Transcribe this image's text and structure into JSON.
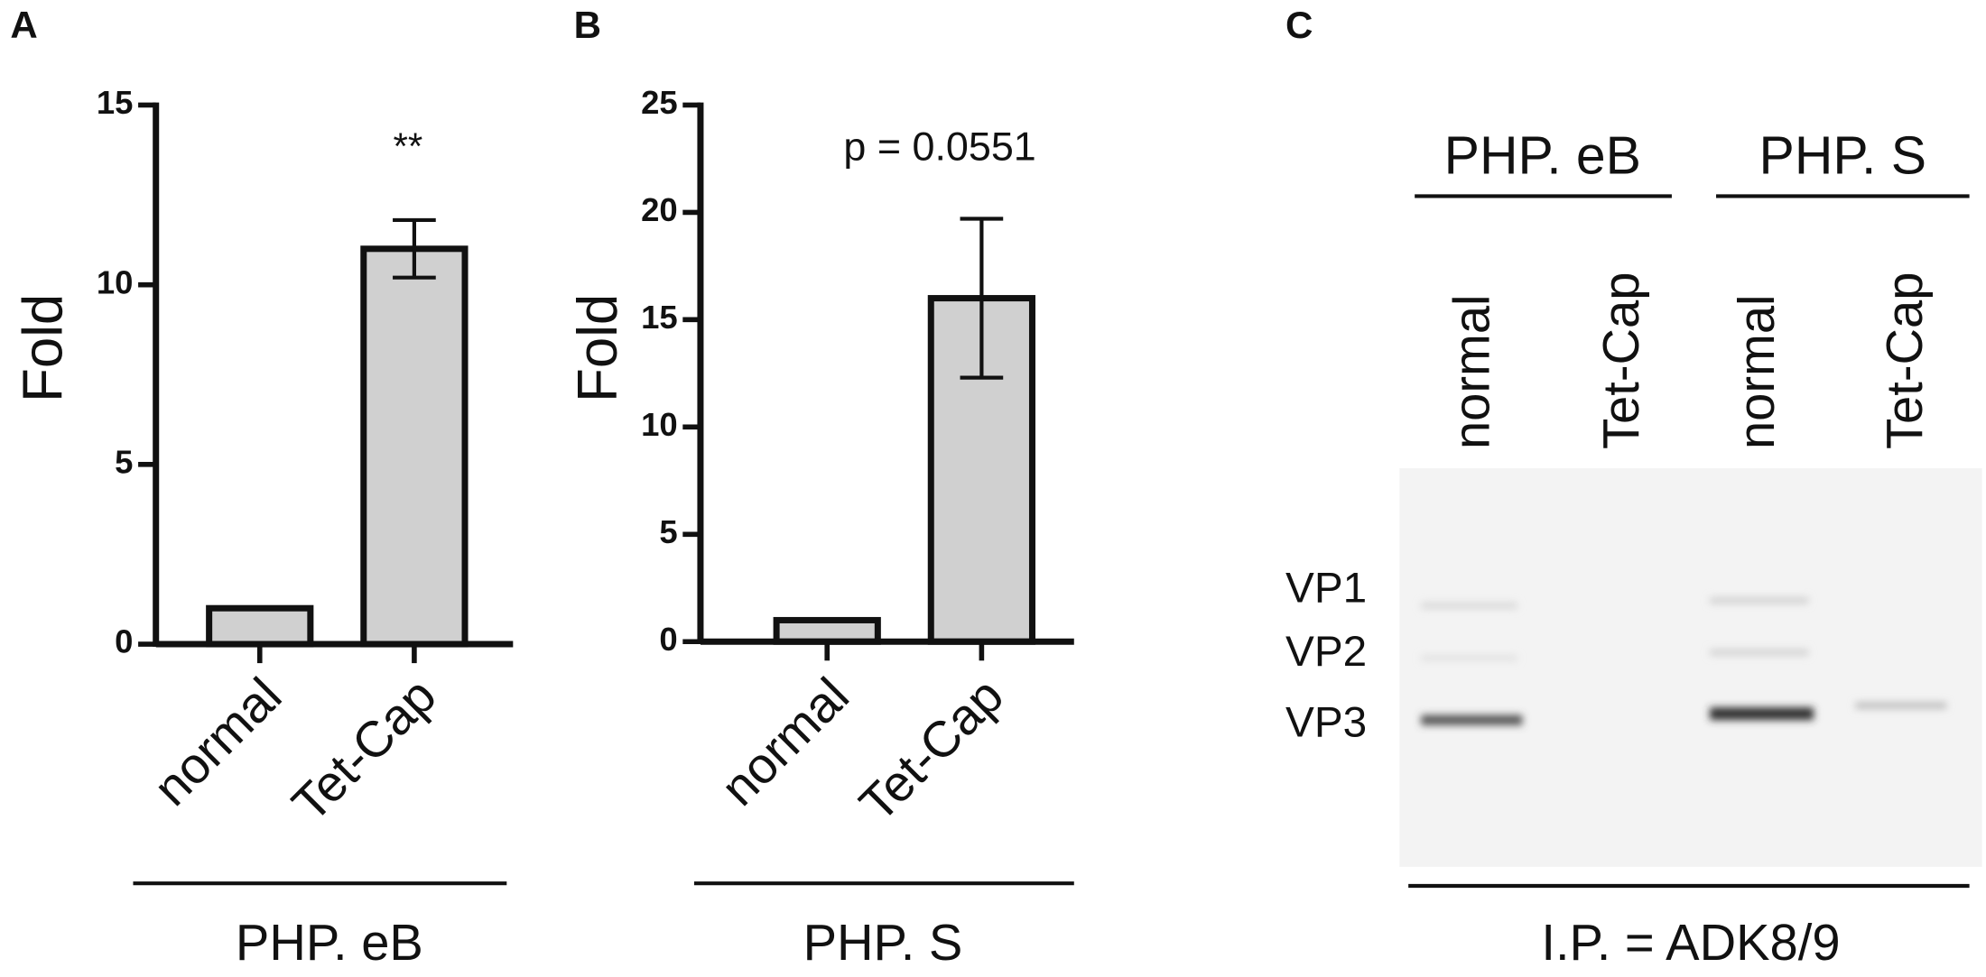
{
  "chart_data": [
    {
      "type": "bar",
      "panel": "A",
      "y_label": "Fold",
      "categories": [
        "normal",
        "Tet-Cap"
      ],
      "values": [
        1,
        11
      ],
      "errors": [
        null,
        0.8
      ],
      "color": "#d0d0d0",
      "annotation": "**",
      "group_label": "PHP. eB",
      "ylim": [
        0,
        15
      ],
      "yticks": [
        0,
        5,
        10,
        15
      ]
    },
    {
      "type": "bar",
      "panel": "B",
      "y_label": "Fold",
      "categories": [
        "normal",
        "Tet-Cap"
      ],
      "values": [
        1,
        16
      ],
      "errors": [
        null,
        3.7
      ],
      "color": "#d0d0d0",
      "annotation": "p = 0.0551",
      "group_label": "PHP. S",
      "ylim": [
        0,
        25
      ],
      "yticks": [
        0,
        5,
        10,
        15,
        20,
        25
      ]
    }
  ],
  "blot": {
    "panel": "C",
    "groups": [
      "PHP. eB",
      "PHP. S"
    ],
    "lanes": [
      "normal",
      "Tet-Cap",
      "normal",
      "Tet-Cap"
    ],
    "bands": [
      "VP1",
      "VP2",
      "VP3"
    ],
    "footer": "I.P. = ADK8/9"
  }
}
